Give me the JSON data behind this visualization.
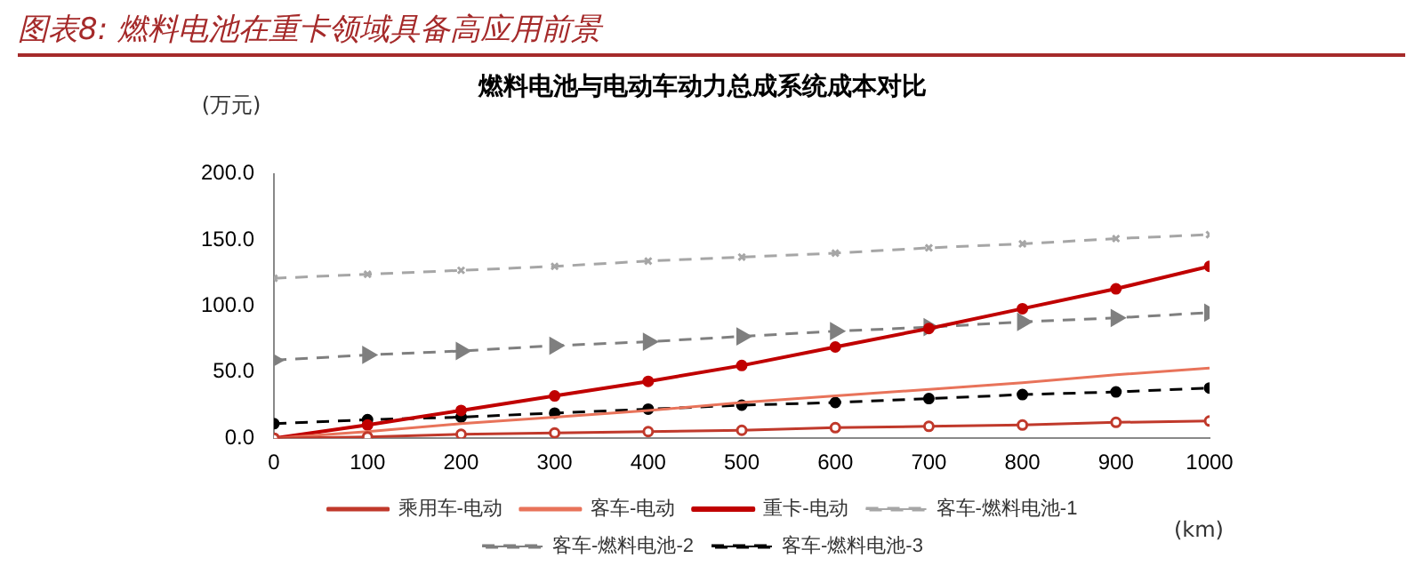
{
  "chart_data": {
    "type": "line",
    "title": "燃料电池与电动车动力总成系统成本对比",
    "ylabel": "(万元)",
    "xlabel": "(km)",
    "annotations": [
      "图表8: 燃料电池在重卡领域具备高应用前景"
    ],
    "x": [
      0,
      100,
      200,
      300,
      400,
      500,
      600,
      700,
      800,
      900,
      1000
    ],
    "xlim": [
      0,
      1000
    ],
    "xticks": [
      0,
      100,
      200,
      300,
      400,
      500,
      600,
      700,
      800,
      900,
      1000
    ],
    "ylim": [
      0,
      200
    ],
    "yticks": [
      {
        "value": 0,
        "label": "0.0"
      },
      {
        "value": 50,
        "label": "50.0"
      },
      {
        "value": 100,
        "label": "100.0"
      },
      {
        "value": 150,
        "label": "150.0"
      },
      {
        "value": 200,
        "label": "200.0"
      }
    ],
    "grid": false,
    "legend": "bottom",
    "series": [
      {
        "name": "乘用车-电动",
        "color": "#c0392b",
        "marker": "circle",
        "line_style": "solid",
        "values": [
          0,
          1,
          3,
          4,
          5,
          6,
          8,
          9,
          10,
          12,
          13
        ]
      },
      {
        "name": "客车-电动",
        "color": "#e8735a",
        "marker": "none",
        "line_style": "solid",
        "values": [
          0,
          5,
          11,
          16,
          21,
          27,
          32,
          37,
          42,
          48,
          53
        ]
      },
      {
        "name": "重卡-电动",
        "color": "#c00000",
        "marker": "circle",
        "line_style": "solid",
        "values": [
          0,
          10,
          21,
          32,
          43,
          55,
          69,
          83,
          98,
          113,
          130
        ]
      },
      {
        "name": "客车-燃料电池-1",
        "color": "#a6a6a6",
        "marker": "cross",
        "line_style": "dashed",
        "values": [
          121,
          124,
          127,
          130,
          134,
          137,
          140,
          144,
          147,
          151,
          154
        ]
      },
      {
        "name": "客车-燃料电池-2",
        "color": "#7f7f7f",
        "marker": "triangle",
        "line_style": "dashed",
        "values": [
          59,
          63,
          66,
          70,
          73,
          77,
          81,
          84,
          88,
          91,
          95
        ]
      },
      {
        "name": "客车-燃料电池-3",
        "color": "#000000",
        "marker": "circle",
        "line_style": "dashed",
        "values": [
          11,
          14,
          16,
          19,
          22,
          25,
          27,
          30,
          33,
          35,
          38
        ]
      }
    ]
  }
}
